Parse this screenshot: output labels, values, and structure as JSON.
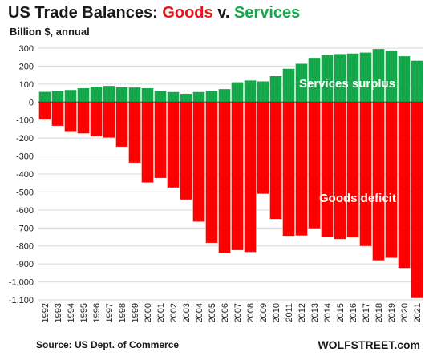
{
  "header": {
    "title_part1": "US Trade Balances: ",
    "title_goods": "Goods",
    "title_mid": " v. ",
    "title_services": "Services",
    "subtitle": "Billion $, annual"
  },
  "footer": {
    "source": "Source: US Dept. of Commerce",
    "brand": "WOLFSTREET.com"
  },
  "colors": {
    "goods": "#ff0000",
    "services": "#14a84a",
    "grid": "#d9d9d9"
  },
  "chart_data": {
    "type": "bar",
    "title": "US Trade Balances: Goods v. Services",
    "subtitle": "Billion $, annual",
    "xlabel": "",
    "ylabel": "",
    "ylim": [
      -1100,
      300
    ],
    "yticks": [
      300,
      200,
      100,
      0,
      -100,
      -200,
      -300,
      -400,
      -500,
      -600,
      -700,
      -800,
      -900,
      -1000,
      -1100
    ],
    "ytick_labels": [
      "300",
      "200",
      "100",
      "0",
      "-100",
      "-200",
      "-300",
      "-400",
      "-500",
      "-600",
      "-700",
      "-800",
      "-900",
      "-1,000",
      "-1,100"
    ],
    "grid": true,
    "categories": [
      "1992",
      "1993",
      "1994",
      "1995",
      "1996",
      "1997",
      "1998",
      "1999",
      "2000",
      "2001",
      "2002",
      "2003",
      "2004",
      "2005",
      "2006",
      "2007",
      "2008",
      "2009",
      "2010",
      "2011",
      "2012",
      "2013",
      "2014",
      "2015",
      "2016",
      "2017",
      "2018",
      "2019",
      "2020",
      "2021"
    ],
    "series": [
      {
        "name": "Services surplus",
        "values": [
          57,
          62,
          67,
          77,
          86,
          90,
          82,
          81,
          77,
          62,
          56,
          46,
          56,
          63,
          72,
          110,
          120,
          115,
          144,
          185,
          213,
          246,
          262,
          267,
          270,
          275,
          295,
          287,
          255,
          230
        ]
      },
      {
        "name": "Goods deficit",
        "values": [
          -96,
          -132,
          -166,
          -174,
          -191,
          -197,
          -248,
          -337,
          -447,
          -422,
          -475,
          -542,
          -665,
          -783,
          -837,
          -823,
          -834,
          -510,
          -650,
          -744,
          -742,
          -702,
          -752,
          -762,
          -753,
          -800,
          -880,
          -866,
          -923,
          -1090
        ]
      }
    ],
    "annotations": [
      "Services surplus",
      "Goods deficit"
    ]
  }
}
